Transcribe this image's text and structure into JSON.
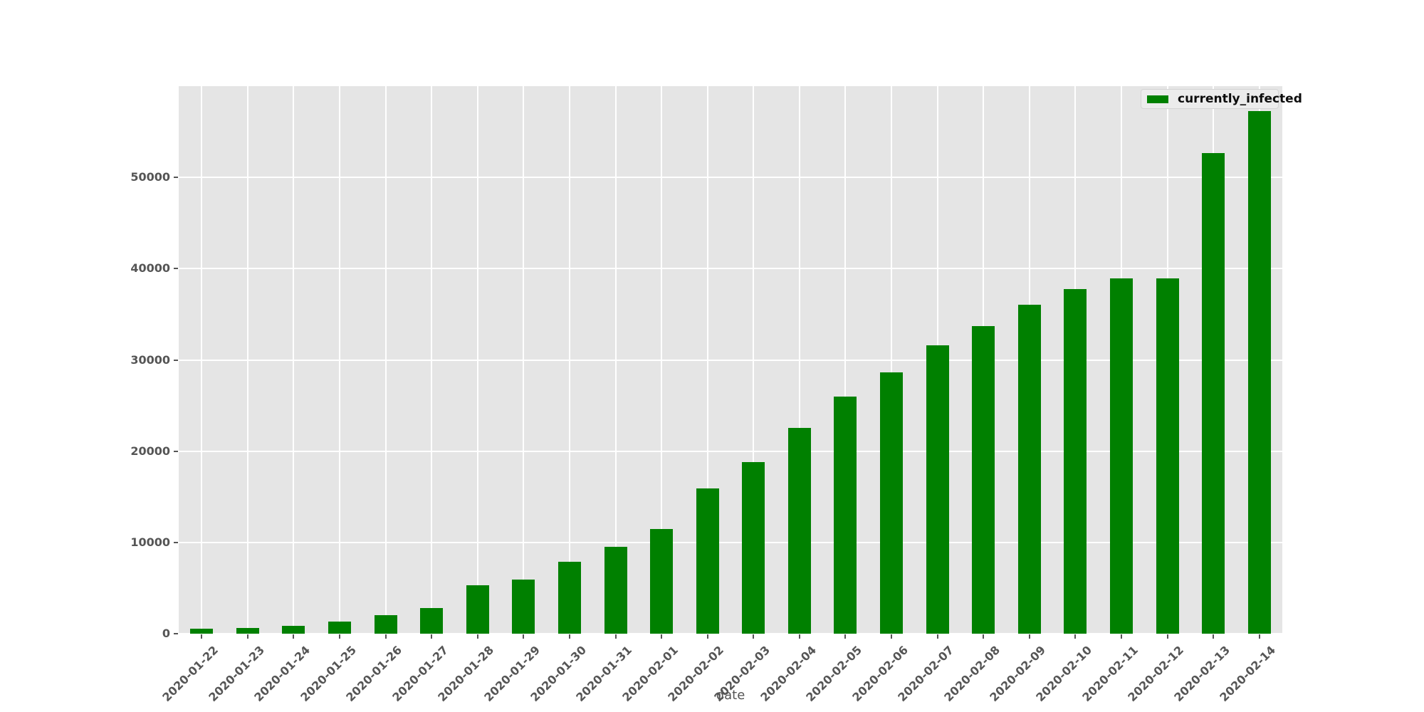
{
  "chart_data": {
    "type": "bar",
    "title": "",
    "xlabel": "date",
    "ylabel": "",
    "categories": [
      "2020-01-22",
      "2020-01-23",
      "2020-01-24",
      "2020-01-25",
      "2020-01-26",
      "2020-01-27",
      "2020-01-28",
      "2020-01-29",
      "2020-01-30",
      "2020-01-31",
      "2020-02-01",
      "2020-02-02",
      "2020-02-03",
      "2020-02-04",
      "2020-02-05",
      "2020-02-06",
      "2020-02-07",
      "2020-02-08",
      "2020-02-09",
      "2020-02-10",
      "2020-02-11",
      "2020-02-12",
      "2020-02-13",
      "2020-02-14"
    ],
    "series": [
      {
        "name": "currently_infected",
        "color": "#008000",
        "values": [
          510,
          606,
          879,
          1353,
          2010,
          2784,
          5340,
          5907,
          7920,
          9492,
          11495,
          15953,
          18832,
          22548,
          25947,
          28673,
          31607,
          33711,
          36025,
          37795,
          38918,
          38953,
          52702,
          57304
        ]
      }
    ],
    "ylim": [
      0,
      60000
    ],
    "yticks": [
      0,
      10000,
      20000,
      30000,
      40000,
      50000
    ],
    "grid": true,
    "legend_position": "upper right",
    "style": {
      "plot_background": "#e5e5e5",
      "grid_color": "#ffffff",
      "tick_label_color": "#555555",
      "figure_background": "#ffffff"
    }
  }
}
